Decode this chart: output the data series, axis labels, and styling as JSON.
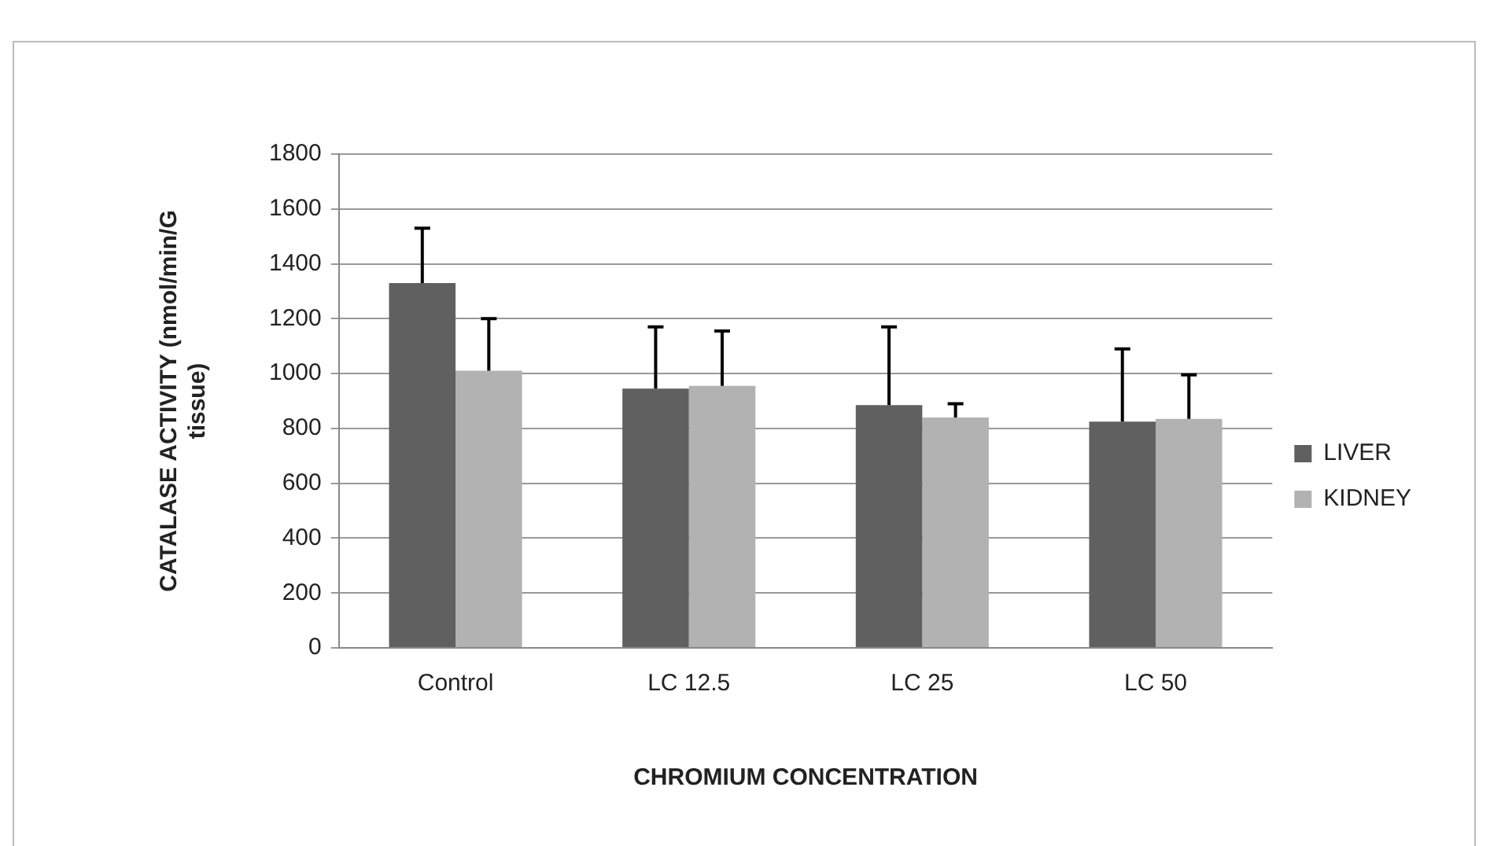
{
  "chart_data": {
    "type": "bar",
    "xlabel": "CHROMIUM CONCENTRATION",
    "ylabel": "CATALASE ACTIVITY (nmol/min/G tissue)",
    "categories": [
      "Control",
      "LC 12.5",
      "LC 25",
      "LC 50"
    ],
    "series": [
      {
        "name": "LIVER",
        "color": "#606060",
        "values": [
          1330,
          945,
          885,
          825
        ],
        "errors": [
          [
            1330,
            1530
          ],
          [
            945,
            1170
          ],
          [
            885,
            1170
          ],
          [
            825,
            1090
          ]
        ]
      },
      {
        "name": "KIDNEY",
        "color": "#b2b2b2",
        "values": [
          1010,
          955,
          840,
          835
        ],
        "errors": [
          [
            1010,
            1200
          ],
          [
            955,
            1155
          ],
          [
            840,
            890
          ],
          [
            835,
            995
          ]
        ]
      }
    ],
    "ylim": [
      0,
      1800
    ],
    "yticks": [
      0,
      200,
      400,
      600,
      800,
      1000,
      1200,
      1400,
      1600,
      1800
    ],
    "grid": "y",
    "legend": "right"
  }
}
